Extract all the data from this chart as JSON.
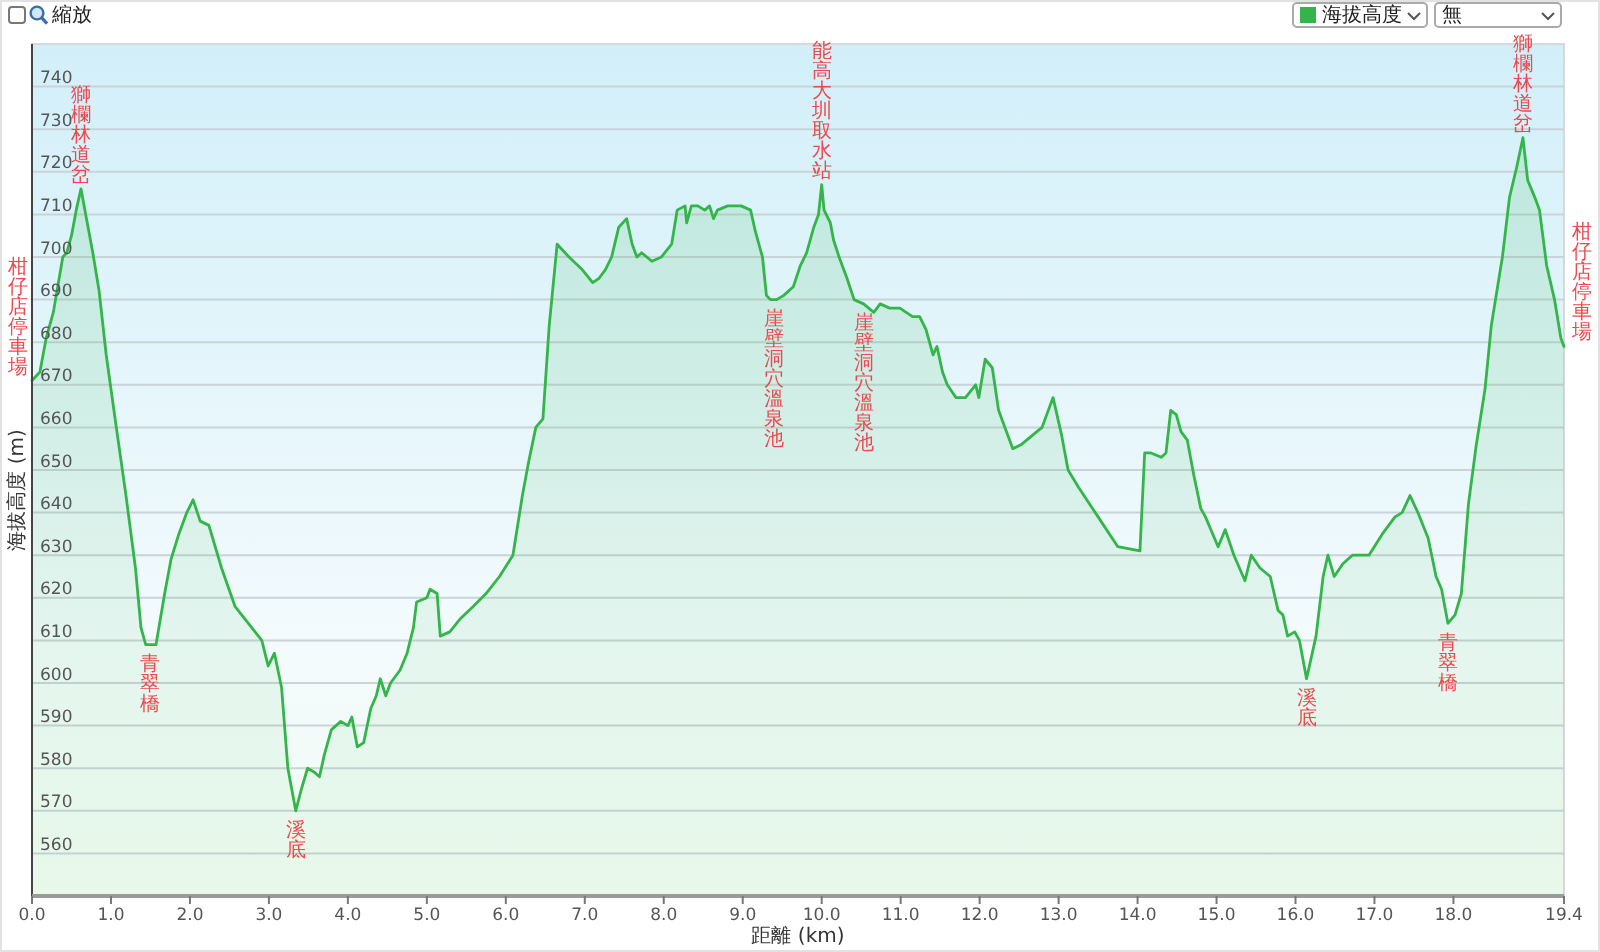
{
  "chart_data": {
    "type": "area",
    "xlabel": "距離 (km)",
    "ylabel": "海拔高度 (m)",
    "xlim": [
      0,
      19.4
    ],
    "ylim": [
      550,
      750
    ],
    "xticks": [
      {
        "value": 0,
        "label": "0.0"
      },
      {
        "value": 1,
        "label": "1.0"
      },
      {
        "value": 2,
        "label": "2.0"
      },
      {
        "value": 3,
        "label": "3.0"
      },
      {
        "value": 4,
        "label": "4.0"
      },
      {
        "value": 5,
        "label": "5.0"
      },
      {
        "value": 6,
        "label": "6.0"
      },
      {
        "value": 7,
        "label": "7.0"
      },
      {
        "value": 8,
        "label": "8.0"
      },
      {
        "value": 9,
        "label": "9.0"
      },
      {
        "value": 10,
        "label": "10.0"
      },
      {
        "value": 11,
        "label": "11.0"
      },
      {
        "value": 12,
        "label": "12.0"
      },
      {
        "value": 13,
        "label": "13.0"
      },
      {
        "value": 14,
        "label": "14.0"
      },
      {
        "value": 15,
        "label": "15.0"
      },
      {
        "value": 16,
        "label": "16.0"
      },
      {
        "value": 17,
        "label": "17.0"
      },
      {
        "value": 18,
        "label": "18.0"
      },
      {
        "value": 19.4,
        "label": "19.4"
      }
    ],
    "yticks": [
      560,
      570,
      580,
      590,
      600,
      610,
      620,
      630,
      640,
      650,
      660,
      670,
      680,
      690,
      700,
      710,
      720,
      730,
      740
    ],
    "grid": "y",
    "legend": "top right",
    "series": [
      {
        "name": "海拔高度",
        "color": "#33b54a",
        "x": [
          0,
          0.1,
          0.18,
          0.27,
          0.39,
          0.44,
          0.5,
          0.56,
          0.62,
          0.69,
          0.77,
          0.85,
          0.94,
          1.06,
          1.19,
          1.31,
          1.38,
          1.44,
          1.57,
          1.68,
          1.76,
          1.86,
          1.96,
          2.04,
          2.13,
          2.24,
          2.4,
          2.57,
          2.74,
          2.91,
          2.99,
          3.07,
          3.16,
          3.24,
          3.34,
          3.41,
          3.49,
          3.58,
          3.64,
          3.7,
          3.79,
          3.91,
          4.0,
          4.05,
          4.12,
          4.2,
          4.29,
          4.36,
          4.41,
          4.48,
          4.54,
          4.66,
          4.75,
          4.83,
          4.87,
          5.0,
          5.04,
          5.13,
          5.17,
          5.29,
          5.42,
          5.59,
          5.75,
          5.92,
          6.09,
          6.21,
          6.29,
          6.38,
          6.47,
          6.55,
          6.65,
          6.7,
          6.8,
          6.97,
          7.1,
          7.18,
          7.26,
          7.34,
          7.43,
          7.53,
          7.6,
          7.66,
          7.72,
          7.85,
          7.97,
          8.1,
          8.17,
          8.27,
          8.29,
          8.35,
          8.43,
          8.52,
          8.58,
          8.63,
          8.68,
          8.81,
          8.98,
          9.1,
          9.16,
          9.25,
          9.3,
          9.35,
          9.43,
          9.52,
          9.64,
          9.73,
          9.81,
          9.9,
          9.96,
          10.0,
          10.03,
          10.11,
          10.15,
          10.22,
          10.32,
          10.41,
          10.53,
          10.66,
          10.74,
          10.86,
          10.99,
          11.07,
          11.15,
          11.24,
          11.32,
          11.41,
          11.46,
          11.53,
          11.59,
          11.7,
          11.82,
          11.95,
          11.99,
          12.07,
          12.16,
          12.24,
          12.32,
          12.42,
          12.53,
          12.66,
          12.79,
          12.85,
          12.93,
          13.04,
          13.12,
          13.25,
          13.5,
          13.75,
          14.03,
          14.09,
          14.17,
          14.3,
          14.36,
          14.42,
          14.49,
          14.55,
          14.63,
          14.71,
          14.8,
          14.86,
          15.02,
          15.11,
          15.22,
          15.36,
          15.44,
          15.55,
          15.68,
          15.78,
          15.84,
          15.9,
          15.99,
          16.05,
          16.14,
          16.26,
          16.35,
          16.41,
          16.49,
          16.6,
          16.72,
          16.85,
          16.93,
          17.1,
          17.26,
          17.35,
          17.45,
          17.55,
          17.68,
          17.78,
          17.85,
          17.93,
          18.02,
          18.1,
          18.19,
          18.29,
          18.4,
          18.48,
          18.62,
          18.71,
          18.8,
          18.88,
          18.94,
          19.03,
          19.09,
          19.18,
          19.28,
          19.36,
          19.4
        ],
        "values": [
          671,
          673,
          681,
          687,
          700,
          701,
          705,
          711,
          716,
          709,
          701,
          692,
          677,
          661,
          644,
          627,
          613,
          609,
          609,
          621,
          629,
          635,
          640,
          643,
          638,
          637,
          627,
          618,
          614,
          610,
          604,
          607,
          599,
          580,
          570,
          575,
          580,
          579,
          578,
          583,
          589,
          591,
          590,
          592,
          585,
          586,
          594,
          597,
          601,
          597,
          600,
          603,
          607,
          613,
          619,
          620,
          622,
          621,
          611,
          612,
          615,
          618,
          621,
          625,
          630,
          644,
          652,
          660,
          662,
          684,
          703,
          702,
          700,
          697,
          694,
          695,
          697,
          700,
          707,
          709,
          703,
          700,
          701,
          699,
          700,
          703,
          711,
          712,
          708,
          712,
          712,
          711,
          712,
          709,
          711,
          712,
          712,
          711,
          706,
          700,
          691,
          690,
          690,
          691,
          693,
          698,
          701,
          707,
          710,
          717,
          711,
          708,
          704,
          700,
          695,
          690,
          689,
          687,
          689,
          688,
          688,
          687,
          686,
          686,
          683,
          677,
          679,
          673,
          670,
          667,
          667,
          670,
          667,
          676,
          674,
          664,
          660,
          655,
          656,
          658,
          660,
          663,
          667,
          658,
          650,
          646,
          639,
          632,
          631,
          654,
          654,
          653,
          654,
          664,
          663,
          659,
          657,
          649,
          641,
          639,
          632,
          636,
          630,
          624,
          630,
          627,
          625,
          617,
          616,
          611,
          612,
          610,
          601,
          611,
          625,
          630,
          625,
          628,
          630,
          630,
          630,
          635,
          639,
          640,
          644,
          640,
          634,
          625,
          622,
          614,
          616,
          621,
          642,
          656,
          669,
          684,
          700,
          714,
          721,
          728,
          718,
          714,
          711,
          698,
          690,
          681,
          679
        ]
      }
    ],
    "annotations": [
      "縮放",
      {
        "text": "柑仔店停車場",
        "x": 0,
        "y": 671
      },
      {
        "text": "獅欄林道岔",
        "x": 0.62,
        "y": 716
      },
      {
        "text": "青翠橋",
        "x": 1.5,
        "y": 609
      },
      {
        "text": "溪底",
        "x": 3.34,
        "y": 570
      },
      {
        "text": "崖壁洞穴溫泉池",
        "x": 9.4,
        "y": 690
      },
      {
        "text": "能高大圳取水站",
        "x": 10.0,
        "y": 717
      },
      {
        "text": "崖壁洞穴溫泉池",
        "x": 10.53,
        "y": 689
      },
      {
        "text": "溪底",
        "x": 16.14,
        "y": 601
      },
      {
        "text": "青翠橋",
        "x": 17.93,
        "y": 614
      },
      {
        "text": "獅欄林道岔",
        "x": 18.88,
        "y": 728
      },
      {
        "text": "柑仔店停車場",
        "x": 19.4,
        "y": 679
      },
      "無"
    ]
  }
}
